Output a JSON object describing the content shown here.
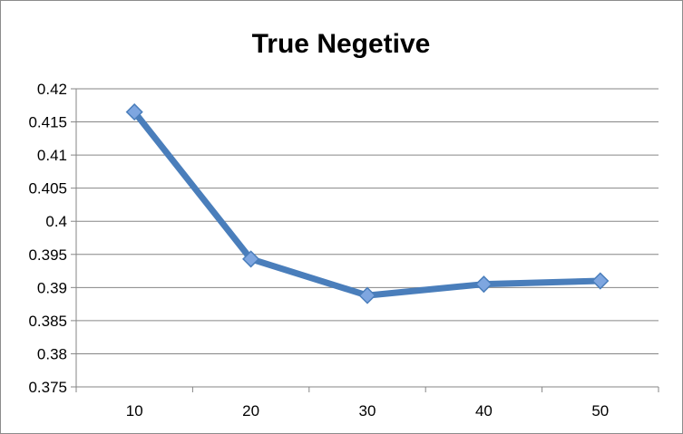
{
  "chart_data": {
    "type": "line",
    "title": "True Negetive",
    "xlabel": "",
    "ylabel": "",
    "categories": [
      "10",
      "20",
      "30",
      "40",
      "50"
    ],
    "series": [
      {
        "values": [
          0.4165,
          0.3943,
          0.3888,
          0.3905,
          0.391
        ]
      }
    ],
    "ylim": [
      0.375,
      0.42
    ],
    "yticks": [
      "0.375",
      "0.38",
      "0.385",
      "0.39",
      "0.395",
      "0.4",
      "0.405",
      "0.41",
      "0.415",
      "0.42"
    ],
    "grid": true,
    "legend": "none",
    "colors": {
      "line": "#4a7ebb",
      "marker_fill": "#7ea6e0",
      "marker_stroke": "#4a7ebb",
      "grid": "#868686"
    }
  }
}
